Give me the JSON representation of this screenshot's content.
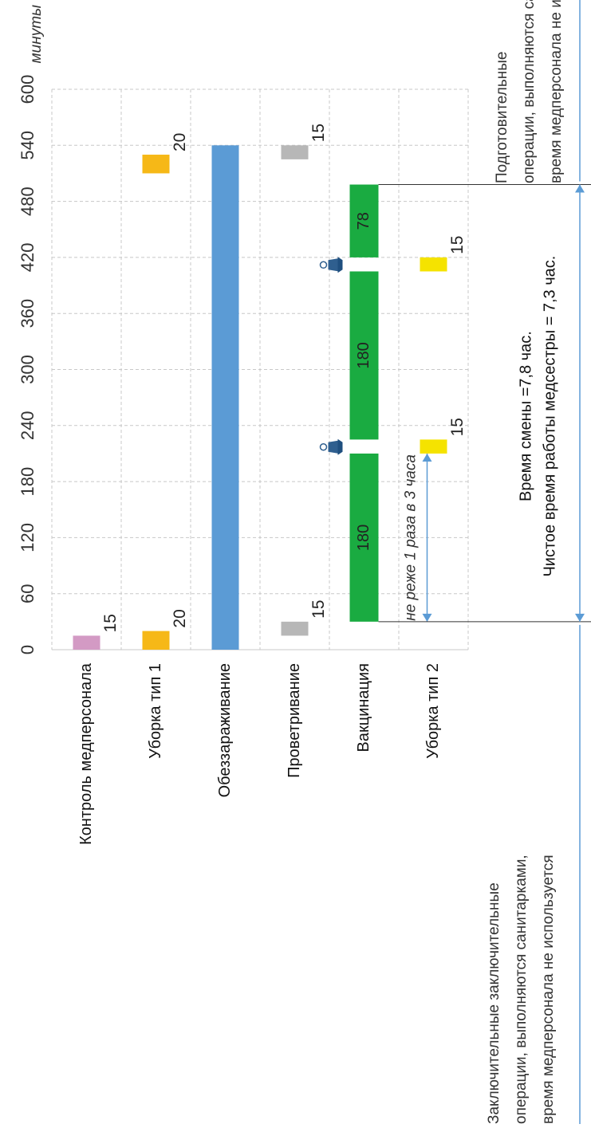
{
  "chart_data": {
    "type": "bar",
    "unit_label": "минуты",
    "xlim": [
      0,
      600
    ],
    "ticks": [
      0,
      60,
      120,
      180,
      240,
      300,
      360,
      420,
      480,
      540,
      600
    ],
    "grid": true,
    "categories": [
      "Контроль медперсонала",
      "Уборка тип 1",
      "Обеззараживание",
      "Проветривание",
      "Вакцинация",
      "Уборка тип 2"
    ],
    "segments": [
      {
        "category": "Контроль медперсонала",
        "start": 0,
        "end": 15,
        "label": "15",
        "color": "#d39ac4"
      },
      {
        "category": "Уборка тип 1",
        "start": 0,
        "end": 20,
        "label": "20",
        "color": "#f6b817"
      },
      {
        "category": "Уборка тип 1",
        "start": 510,
        "end": 530,
        "label": "20",
        "color": "#f6b817"
      },
      {
        "category": "Обеззараживание",
        "start": 0,
        "end": 540,
        "label": "",
        "color": "#5b9bd5"
      },
      {
        "category": "Проветривание",
        "start": 15,
        "end": 30,
        "label": "15",
        "color": "#b7b7b7"
      },
      {
        "category": "Проветривание",
        "start": 525,
        "end": 540,
        "label": "15",
        "color": "#b7b7b7"
      },
      {
        "category": "Вакцинация",
        "start": 30,
        "end": 210,
        "label": "180",
        "color": "#1aab41"
      },
      {
        "category": "Вакцинация",
        "start": 225,
        "end": 405,
        "label": "180",
        "color": "#1aab41"
      },
      {
        "category": "Вакцинация",
        "start": 420,
        "end": 498,
        "label": "78",
        "color": "#1aab41"
      },
      {
        "category": "Уборка тип 2",
        "start": 210,
        "end": 225,
        "label": "15",
        "color": "#f5e300"
      },
      {
        "category": "Уборка тип 2",
        "start": 405,
        "end": 420,
        "label": "15",
        "color": "#f5e300"
      }
    ],
    "annotations": {
      "interval_note": "не реже 1 раза в 3 часа",
      "shift_time": "Время смены =7,8 час.",
      "net_time": "Чистое время работы медсестры = 7,3 час.",
      "prep_note_lines": [
        "Подготовительные",
        "операции, выполняются санитарками,",
        "время медперсонала не используется"
      ],
      "final_note_lines": [
        "Заключительные заключительные",
        "операции, выполняются санитарками,",
        "время медперсонала не используется"
      ]
    }
  },
  "colors": {
    "grid": "#c8c8c8",
    "arrow": "#5b9bd5",
    "axis": "#9e9e9e"
  }
}
